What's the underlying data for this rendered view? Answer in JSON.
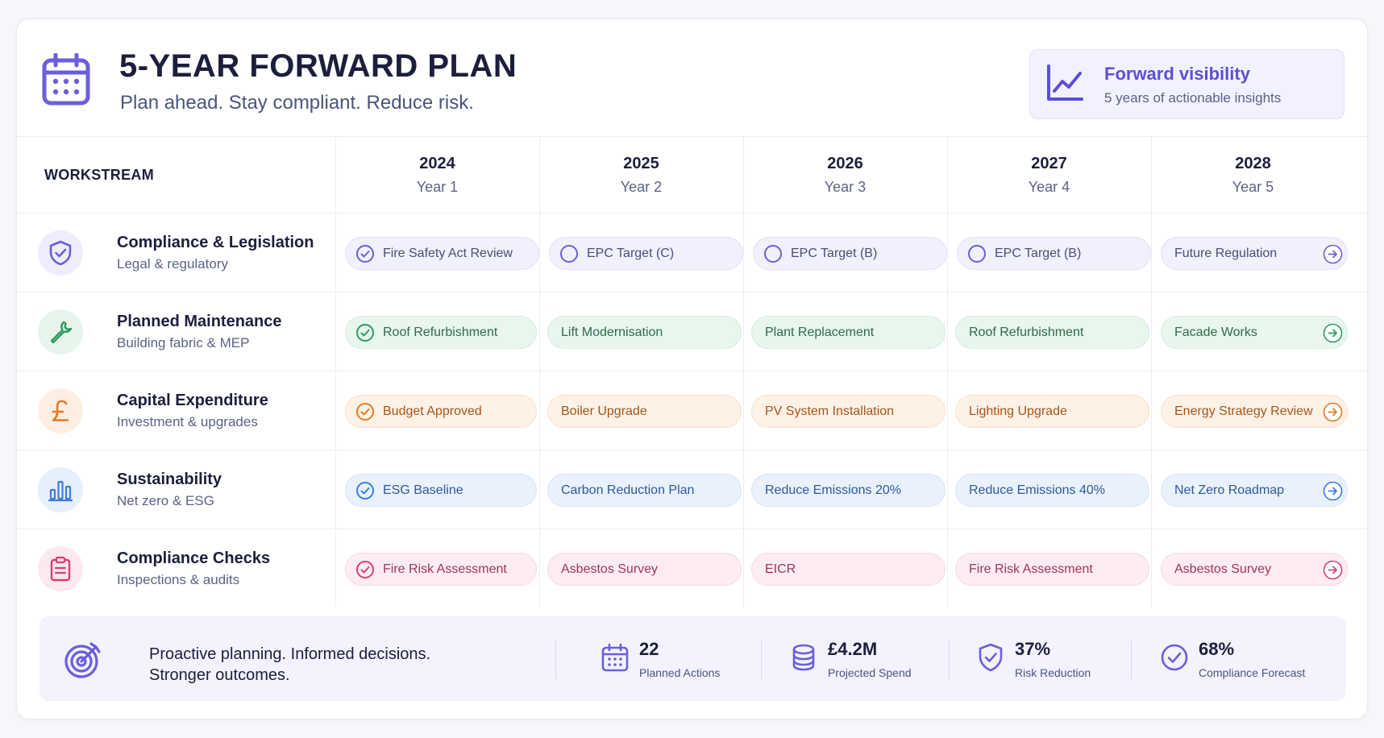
{
  "header": {
    "title": "5-YEAR FORWARD PLAN",
    "subtitle": "Plan ahead. Stay compliant. Reduce risk.",
    "visibility_title": "Forward visibility",
    "visibility_subtitle": "5 years of actionable insights"
  },
  "table": {
    "workstream_header": "WORKSTREAM",
    "years": [
      {
        "year": "2024",
        "label": "Year 1"
      },
      {
        "year": "2025",
        "label": "Year 2"
      },
      {
        "year": "2026",
        "label": "Year 3"
      },
      {
        "year": "2027",
        "label": "Year 4"
      },
      {
        "year": "2028",
        "label": "Year 5"
      }
    ],
    "rows": [
      {
        "name": "Compliance & Legislation",
        "description": "Legal & regulatory",
        "icon": "shield-check-icon",
        "color": "#6b5fd9",
        "items": [
          "Fire Safety Act Review",
          "EPC Target (C)",
          "EPC Target (B)",
          "EPC Target (B)",
          "Future Regulation"
        ]
      },
      {
        "name": "Planned Maintenance",
        "description": "Building fabric & MEP",
        "icon": "wrench-icon",
        "color": "#2e9a5e",
        "items": [
          "Roof Refurbishment",
          "Lift Modernisation",
          "Plant Replacement",
          "Roof Refurbishment",
          "Facade Works"
        ]
      },
      {
        "name": "Capital Expenditure",
        "description": "Investment & upgrades",
        "icon": "pound-icon",
        "color": "#e07b2a",
        "items": [
          "Budget Approved",
          "Boiler Upgrade",
          "PV System Installation",
          "Lighting Upgrade",
          "Energy Strategy Review"
        ]
      },
      {
        "name": "Sustainability",
        "description": "Net zero & ESG",
        "icon": "bar-chart-icon",
        "color": "#3b7de0",
        "items": [
          "ESG Baseline",
          "Carbon Reduction Plan",
          "Reduce Emissions 20%",
          "Reduce Emissions 40%",
          "Net Zero Roadmap"
        ]
      },
      {
        "name": "Compliance Checks",
        "description": "Inspections & audits",
        "icon": "clipboard-icon",
        "color": "#d64272",
        "items": [
          "Fire Risk Assessment",
          "Asbestos Survey",
          "EICR",
          "Fire Risk Assessment",
          "Asbestos Survey"
        ]
      }
    ]
  },
  "footer": {
    "tagline_line1": "Proactive planning. Informed decisions.",
    "tagline_line2": "Stronger outcomes.",
    "stats": [
      {
        "value": "22",
        "label": "Planned Actions",
        "icon": "calendar-icon"
      },
      {
        "value": "£4.2M",
        "label": "Projected Spend",
        "icon": "coins-icon"
      },
      {
        "value": "37%",
        "label": "Risk Reduction",
        "icon": "shield-icon"
      },
      {
        "value": "68%",
        "label": "Compliance Forecast",
        "icon": "check-circle-icon"
      }
    ]
  },
  "colors": {
    "accent": "#5b4fd9",
    "purple": "#6b5fd9",
    "green": "#2e9a5e",
    "orange": "#e07b2a",
    "blue": "#3b7de0",
    "pink": "#d64272"
  }
}
